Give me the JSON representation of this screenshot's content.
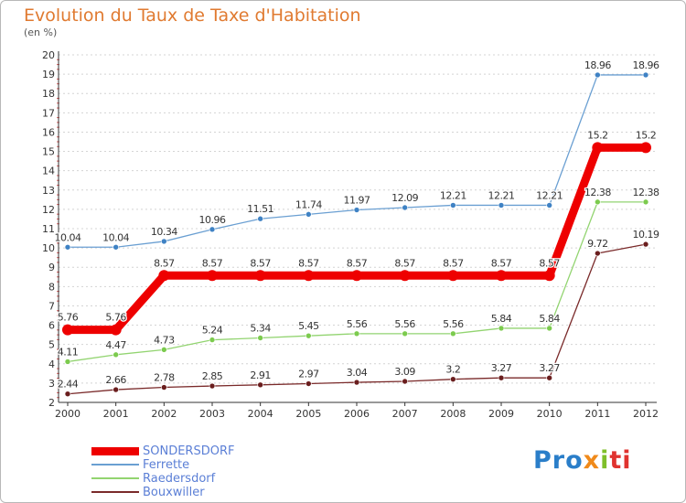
{
  "title": "Evolution du Taux de Taxe d'Habitation",
  "subtitle": "(en %)",
  "logo": {
    "text": "Proxiti",
    "part1": "Pro",
    "part2": "x",
    "part3": "i",
    "part4": "ti"
  },
  "chart_data": {
    "type": "line",
    "title": "Evolution du Taux de Taxe d'Habitation",
    "ylabel": "(en %)",
    "xlabel": "",
    "ylim": [
      2,
      20
    ],
    "yticks": [
      2,
      3,
      4,
      5,
      6,
      7,
      8,
      9,
      10,
      11,
      12,
      13,
      14,
      15,
      16,
      17,
      18,
      19,
      20
    ],
    "x": [
      "2000",
      "2001",
      "2002",
      "2003",
      "2004",
      "2005",
      "2006",
      "2007",
      "2008",
      "2009",
      "2010",
      "2011",
      "2012"
    ],
    "grid": "horizontal dotted",
    "legend": "bottom-left",
    "series": [
      {
        "name": "Ferrette",
        "color": "#6a9fd2",
        "point_color": "#3f82c4",
        "values": [
          10.04,
          10.04,
          10.34,
          10.96,
          11.51,
          11.74,
          11.97,
          12.09,
          12.21,
          12.21,
          12.21,
          18.96,
          18.96
        ],
        "labels": [
          "10.04",
          "10.04",
          "10.34",
          "10.96",
          "11.51",
          "11.74",
          "11.97",
          "12.09",
          "12.21",
          "12.21",
          "12.21",
          "18.96",
          "18.96"
        ]
      },
      {
        "name": "Raedersdorf",
        "color": "#92d470",
        "point_color": "#7ccb4e",
        "values": [
          4.11,
          4.47,
          4.73,
          5.24,
          5.34,
          5.45,
          5.56,
          5.56,
          5.56,
          5.84,
          5.84,
          12.38,
          12.38
        ],
        "labels": [
          "4.11",
          "4.47",
          "4.73",
          "5.24",
          "5.34",
          "5.45",
          "5.56",
          "5.56",
          "5.56",
          "5.84",
          "5.84",
          "12.38",
          "12.38"
        ]
      },
      {
        "name": "Bouxwiller",
        "color": "#7a2a2a",
        "point_color": "#6a1e1e",
        "values": [
          2.44,
          2.66,
          2.78,
          2.85,
          2.91,
          2.97,
          3.04,
          3.09,
          3.2,
          3.27,
          3.27,
          9.72,
          10.19
        ],
        "labels": [
          "2.44",
          "2.66",
          "2.78",
          "2.85",
          "2.91",
          "2.97",
          "3.04",
          "3.09",
          "3.2",
          "3.27",
          "3.27",
          "9.72",
          "10.19"
        ]
      },
      {
        "name": "SONDERSDORF",
        "color": "#ee0000",
        "point_color": "#ee0000",
        "emphasis": true,
        "values": [
          5.76,
          5.76,
          8.57,
          8.57,
          8.57,
          8.57,
          8.57,
          8.57,
          8.57,
          8.57,
          8.57,
          15.2,
          15.2
        ],
        "labels": [
          "5.76",
          "5.76",
          "8.57",
          "8.57",
          "8.57",
          "8.57",
          "8.57",
          "8.57",
          "8.57",
          "8.57",
          "8.57",
          "15.2",
          "15.2"
        ]
      }
    ],
    "legend_entries": [
      {
        "name": "SONDERSDORF",
        "color": "#ee0000",
        "text_color": "#5b7fd6"
      },
      {
        "name": "Ferrette",
        "color": "#6a9fd2",
        "text_color": "#5b7fd6"
      },
      {
        "name": "Raedersdorf",
        "color": "#92d470",
        "text_color": "#5b7fd6"
      },
      {
        "name": "Bouxwiller",
        "color": "#7a2a2a",
        "text_color": "#5b7fd6"
      }
    ]
  }
}
